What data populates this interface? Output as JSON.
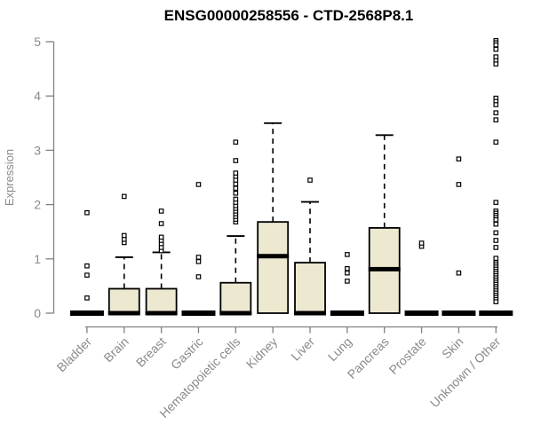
{
  "chart_data": {
    "type": "boxplot",
    "title": "ENSG00000258556 - CTD-2568P8.1",
    "ylabel": "Expression",
    "ylim": [
      0,
      5
    ],
    "yticks": [
      0,
      1,
      2,
      3,
      4,
      5
    ],
    "categories": [
      "Bladder",
      "Brain",
      "Breast",
      "Gastric",
      "Hematopoietic cells",
      "Kidney",
      "Liver",
      "Lung",
      "Pancreas",
      "Prostate",
      "Skin",
      "Unknown / Other"
    ],
    "series": [
      {
        "category": "Bladder",
        "q1": 0,
        "median": 0,
        "q3": 0,
        "whisker_low": 0,
        "whisker_high": 0,
        "outliers": [
          0.28,
          0.7,
          0.87,
          1.85
        ]
      },
      {
        "category": "Brain",
        "q1": 0,
        "median": 0,
        "q3": 0.45,
        "whisker_low": 0,
        "whisker_high": 1.03,
        "outliers": [
          1.3,
          1.36,
          1.43,
          2.15
        ]
      },
      {
        "category": "Breast",
        "q1": 0,
        "median": 0,
        "q3": 0.45,
        "whisker_low": 0,
        "whisker_high": 1.12,
        "outliers": [
          1.15,
          1.21,
          1.28,
          1.34,
          1.4,
          1.65,
          1.88
        ]
      },
      {
        "category": "Gastric",
        "q1": 0,
        "median": 0,
        "q3": 0,
        "whisker_low": 0,
        "whisker_high": 0,
        "outliers": [
          0.67,
          0.95,
          1.03,
          2.37
        ]
      },
      {
        "category": "Hematopoietic cells",
        "q1": 0,
        "median": 0,
        "q3": 0.56,
        "whisker_low": 0,
        "whisker_high": 1.42,
        "outliers": [
          1.68,
          1.73,
          1.78,
          1.83,
          1.88,
          1.93,
          1.98,
          2.04,
          2.1,
          2.21,
          2.3,
          2.38,
          2.45,
          2.52,
          2.58,
          2.81,
          3.15
        ]
      },
      {
        "category": "Kidney",
        "q1": 0,
        "median": 1.05,
        "q3": 1.68,
        "whisker_low": 0,
        "whisker_high": 3.5,
        "outliers": []
      },
      {
        "category": "Liver",
        "q1": 0,
        "median": 0,
        "q3": 0.93,
        "whisker_low": 0,
        "whisker_high": 2.05,
        "outliers": [
          2.45
        ]
      },
      {
        "category": "Lung",
        "q1": 0,
        "median": 0,
        "q3": 0,
        "whisker_low": 0,
        "whisker_high": 0,
        "outliers": [
          0.59,
          0.74,
          0.82,
          1.08
        ]
      },
      {
        "category": "Pancreas",
        "q1": 0,
        "median": 0.81,
        "q3": 1.57,
        "whisker_low": 0,
        "whisker_high": 3.28,
        "outliers": []
      },
      {
        "category": "Prostate",
        "q1": 0,
        "median": 0,
        "q3": 0,
        "whisker_low": 0,
        "whisker_high": 0,
        "outliers": [
          1.23,
          1.29
        ]
      },
      {
        "category": "Skin",
        "q1": 0,
        "median": 0,
        "q3": 0,
        "whisker_low": 0,
        "whisker_high": 0,
        "outliers": [
          0.74,
          2.37,
          2.84
        ]
      },
      {
        "category": "Unknown / Other",
        "q1": 0,
        "median": 0,
        "q3": 0,
        "whisker_low": 0,
        "whisker_high": 0,
        "outliers": [
          5.02,
          4.98,
          4.94,
          4.86,
          4.72,
          4.65,
          4.59,
          3.96,
          3.9,
          3.84,
          3.69,
          3.56,
          3.15,
          2.04,
          1.88,
          1.84,
          1.8,
          1.76,
          1.72,
          1.64,
          1.48,
          1.34,
          1.21,
          1.01,
          0.93,
          0.89,
          0.85,
          0.81,
          0.77,
          0.73,
          0.69,
          0.65,
          0.61,
          0.57,
          0.53,
          0.49,
          0.45,
          0.41,
          0.37,
          0.33,
          0.29,
          0.25,
          0.21
        ]
      }
    ],
    "style": {
      "box_fill": "#EDE8D0",
      "box_stroke": "#000000",
      "median_color": "#000000",
      "whisker_color": "#000000",
      "outlier_marker": "open-square",
      "axis_color": "#808080",
      "label_color": "#8A8A8A",
      "title_color": "#000000",
      "background": "#FFFFFF",
      "grid": "off",
      "legend": "none"
    }
  }
}
